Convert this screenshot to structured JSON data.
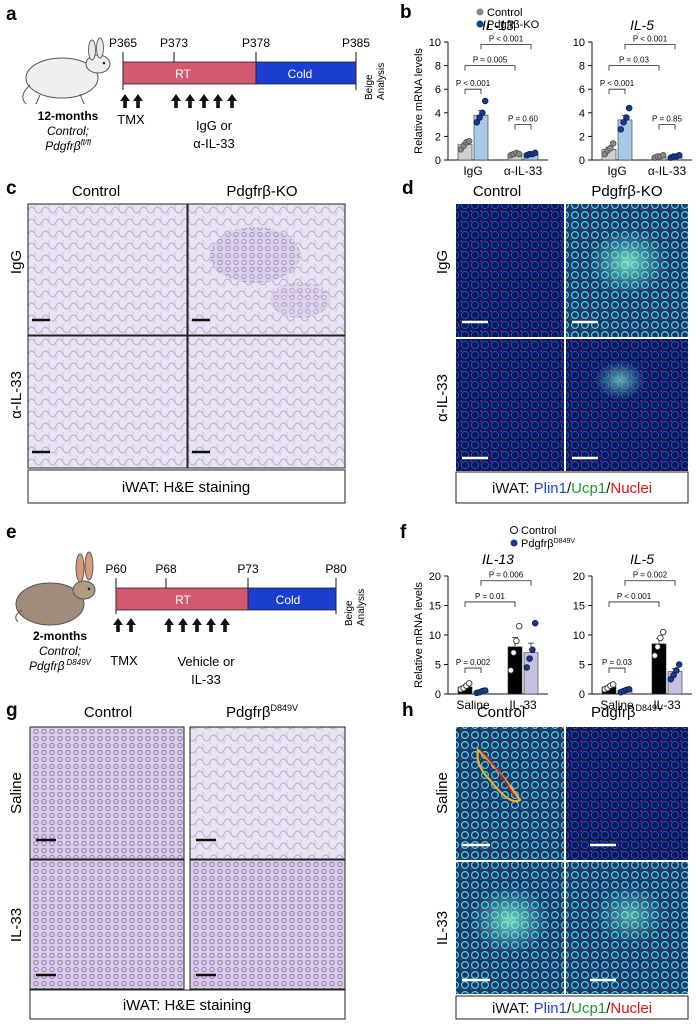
{
  "panels": {
    "a": {
      "letter": "a",
      "mouse_caption": [
        "12-months",
        "Control;",
        "Pdgfrβ",
        "fl/fl"
      ],
      "timepoints": [
        "P365",
        "P373",
        "P378",
        "P385"
      ],
      "phase_rt": "RT",
      "phase_cold": "Cold",
      "end_label": [
        "Beige",
        "Analysis"
      ],
      "tmx_label": "TMX",
      "treatment_label": [
        "IgG or",
        "α-IL-33"
      ]
    },
    "b": {
      "letter": "b",
      "legend": [
        "Control",
        "Pdgfrβ-KO"
      ],
      "ylabel": "Relative mRNA  levels"
    },
    "c": {
      "letter": "c",
      "col_labels": [
        "Control",
        "Pdgfrβ-KO"
      ],
      "row_labels": [
        "IgG",
        "α-IL-33"
      ],
      "caption": "iWAT: H&E staining"
    },
    "d": {
      "letter": "d",
      "col_labels": [
        "Control",
        "Pdgfrβ-KO"
      ],
      "row_labels": [
        "IgG",
        "α-IL-33"
      ],
      "caption_prefix": "iWAT: ",
      "caption_parts": [
        "Plin1",
        "/",
        "Ucp1",
        "/",
        "Nuclei"
      ],
      "caption_colors": [
        "#1f3fd6",
        "#111111",
        "#1a9a2a",
        "#111111",
        "#e01010"
      ]
    },
    "e": {
      "letter": "e",
      "mouse_caption": [
        "2-months",
        "Control;",
        "Pdgfrβ",
        "D849V"
      ],
      "timepoints": [
        "P60",
        "P68",
        "P73",
        "P80"
      ],
      "phase_rt": "RT",
      "phase_cold": "Cold",
      "end_label": [
        "Beige",
        "Analysis"
      ],
      "tmx_label": "TMX",
      "treatment_label": [
        "Vehicle or",
        "IL-33"
      ]
    },
    "f": {
      "letter": "f",
      "legend": [
        "Control",
        "Pdgfrβ",
        "D849V"
      ],
      "ylabel": "Relative mRNA  levels"
    },
    "g": {
      "letter": "g",
      "col_labels": [
        "Control",
        "Pdgfrβ",
        "D849V"
      ],
      "row_labels": [
        "Saline",
        "IL-33"
      ],
      "caption": "iWAT: H&E staining"
    },
    "h": {
      "letter": "h",
      "col_labels": [
        "Control",
        "Pdgfrβ",
        "D849V"
      ],
      "row_labels": [
        "Saline",
        "IL-33"
      ],
      "caption_prefix": "iWAT: ",
      "caption_parts": [
        "Plin1",
        "/",
        "Ucp1",
        "/",
        "Nuclei"
      ],
      "caption_colors": [
        "#1f3fd6",
        "#111111",
        "#1a9a2a",
        "#111111",
        "#e01010"
      ]
    }
  },
  "colors": {
    "control_fill": "#d0d0d0",
    "ko_fill": "#a9c9e8",
    "point_control": "#888888",
    "point_ko": "#1c3a8a",
    "d849v_control_fill": "#000000",
    "d849v_fill": "#c4c2e0",
    "timeline_rt": "#d35a6e",
    "timeline_cold": "#1a3fd0",
    "he_bg": "#e8e4f2",
    "he_line": "#b9a6d1",
    "fl_bg": "#0a1a55"
  },
  "chart_data": [
    {
      "type": "bar",
      "panel": "b",
      "title": "IL-13",
      "ylabel": "Relative mRNA  levels",
      "categories": [
        "IgG",
        "α-IL-33"
      ],
      "ylim": [
        0,
        10
      ],
      "yticks": [
        "0",
        "2",
        "4",
        "6",
        "8",
        "10"
      ],
      "series": [
        {
          "name": "Control",
          "values": [
            1.3,
            0.5
          ],
          "points": [
            [
              0.9,
              1.2,
              1.5,
              1.6
            ],
            [
              0.4,
              0.5,
              0.6,
              0.5
            ]
          ]
        },
        {
          "name": "Pdgfrβ-KO",
          "values": [
            3.8,
            0.5
          ],
          "points": [
            [
              3.2,
              3.6,
              4.0,
              5.0
            ],
            [
              0.4,
              0.5,
              0.5,
              0.6
            ]
          ]
        }
      ],
      "annotations": [
        "P < 0.001",
        "P = 0.005",
        "P < 0.001",
        "P = 0.60"
      ]
    },
    {
      "type": "bar",
      "panel": "b",
      "title": "IL-5",
      "ylabel": "",
      "categories": [
        "IgG",
        "α-IL-33"
      ],
      "ylim": [
        0,
        10
      ],
      "yticks": [
        "0",
        "2",
        "4",
        "6",
        "8",
        "10"
      ],
      "series": [
        {
          "name": "Control",
          "values": [
            0.9,
            0.3
          ],
          "points": [
            [
              0.5,
              0.8,
              1.0,
              1.4
            ],
            [
              0.2,
              0.3,
              0.3,
              0.4
            ]
          ]
        },
        {
          "name": "Pdgfrβ-KO",
          "values": [
            3.4,
            0.3
          ],
          "points": [
            [
              2.6,
              3.2,
              3.6,
              4.4
            ],
            [
              0.2,
              0.3,
              0.3,
              0.4
            ]
          ]
        }
      ],
      "annotations": [
        "P < 0.001",
        "P = 0.03",
        "P < 0.001",
        "P = 0.85"
      ]
    },
    {
      "type": "bar",
      "panel": "f",
      "title": "IL-13",
      "ylabel": "Relative mRNA  levels",
      "categories": [
        "Saline",
        "IL-33"
      ],
      "ylim": [
        0,
        20
      ],
      "yticks": [
        "0",
        "5",
        "10",
        "15",
        "20"
      ],
      "series": [
        {
          "name": "Control",
          "values": [
            1.2,
            8.0
          ],
          "points": [
            [
              0.8,
              1.0,
              1.4,
              1.8
            ],
            [
              4.0,
              7.0,
              9.0,
              11.5
            ]
          ]
        },
        {
          "name": "Pdgfrβ D849V",
          "values": [
            0.4,
            7.0
          ],
          "points": [
            [
              0.2,
              0.3,
              0.5,
              0.6
            ],
            [
              4.5,
              6.0,
              7.5,
              12.0
            ]
          ]
        }
      ],
      "annotations": [
        "P = 0.002",
        "P = 0.01",
        "P = 0.006"
      ]
    },
    {
      "type": "bar",
      "panel": "f",
      "title": "IL-5",
      "ylabel": "",
      "categories": [
        "Saline",
        "IL-33"
      ],
      "ylim": [
        0,
        20
      ],
      "yticks": [
        "0",
        "5",
        "10",
        "15",
        "20"
      ],
      "series": [
        {
          "name": "Control",
          "values": [
            1.2,
            8.5
          ],
          "points": [
            [
              0.8,
              1.0,
              1.4,
              1.6
            ],
            [
              6.5,
              8.0,
              9.5,
              10.5
            ]
          ]
        },
        {
          "name": "Pdgfrβ D849V",
          "values": [
            0.6,
            3.8
          ],
          "points": [
            [
              0.3,
              0.5,
              0.7,
              0.8
            ],
            [
              2.5,
              3.2,
              4.0,
              5.0
            ]
          ]
        }
      ],
      "annotations": [
        "P = 0.03",
        "P < 0.001",
        "P = 0.002"
      ]
    }
  ]
}
